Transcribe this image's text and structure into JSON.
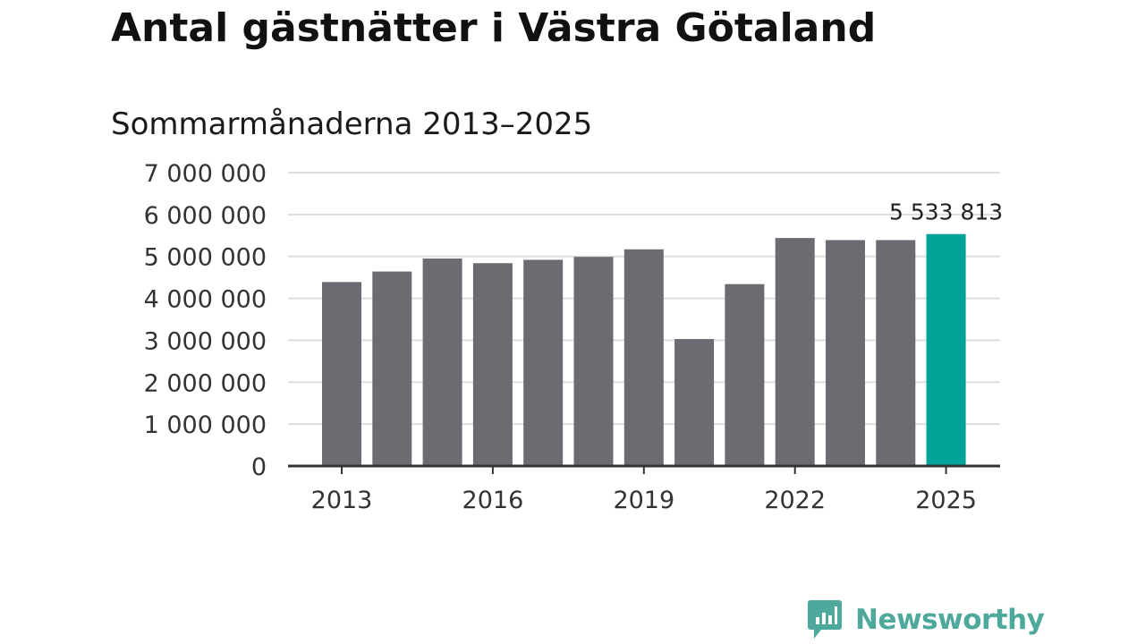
{
  "chart_data": {
    "type": "bar",
    "title": "Antal gästnätter i Västra Götaland",
    "subtitle": "Sommarmånaderna 2013–2025",
    "categories": [
      "2013",
      "2014",
      "2015",
      "2016",
      "2017",
      "2018",
      "2019",
      "2020",
      "2021",
      "2022",
      "2023",
      "2024",
      "2025"
    ],
    "values": [
      4390000,
      4640000,
      4950000,
      4840000,
      4920000,
      4990000,
      5170000,
      3030000,
      4340000,
      5440000,
      5390000,
      5390000,
      5533813
    ],
    "x_tick_labels": [
      "2013",
      "2016",
      "2019",
      "2022",
      "2025"
    ],
    "y_tick_labels": [
      "0",
      "1 000 000",
      "2 000 000",
      "3 000 000",
      "4 000 000",
      "5 000 000",
      "6 000 000",
      "7 000 000"
    ],
    "ylim": [
      0,
      7000000
    ],
    "grid": true,
    "highlight_index": 12,
    "highlight_label": "5 533 813",
    "colors": {
      "bar": "#6c6b72",
      "highlight": "#00a398",
      "grid": "#dddddd",
      "axis": "#333333",
      "tick_text": "#333333"
    }
  },
  "brand": {
    "name": "Newsworthy",
    "icon": "newsworthy-logo-icon"
  }
}
